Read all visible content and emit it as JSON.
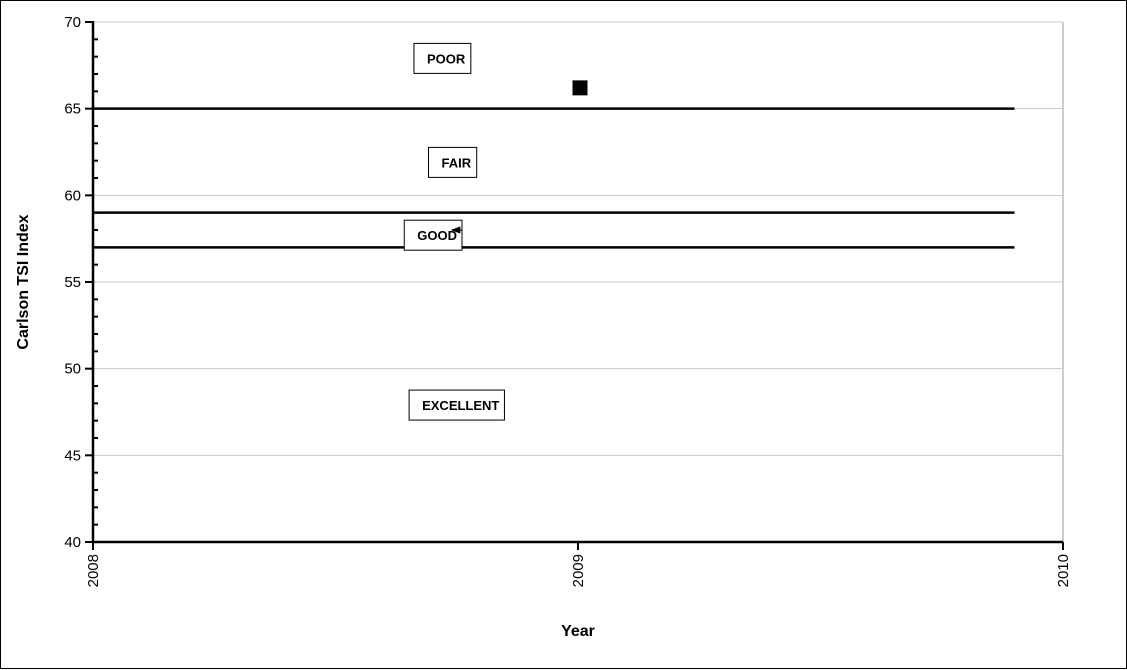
{
  "chart_data": {
    "type": "scatter",
    "title": "",
    "xlabel": "Year",
    "ylabel": "Carlson TSI Index",
    "xlim": [
      2008,
      2010
    ],
    "ylim": [
      40,
      70
    ],
    "x_ticks": [
      2008,
      2009,
      2010
    ],
    "y_ticks": [
      40,
      45,
      50,
      55,
      60,
      65,
      70
    ],
    "grid": "horizontal major gridlines",
    "legend": "none",
    "series": [
      {
        "points": [
          {
            "x": 2009,
            "y": 66.2
          }
        ],
        "color": "#000000",
        "marker": "square"
      }
    ],
    "reference_lines": [
      {
        "y": 65,
        "x_range": [
          2008,
          2009.9
        ]
      },
      {
        "y": 59,
        "x_range": [
          2008,
          2009.9
        ]
      },
      {
        "y": 57,
        "x_range": [
          2008,
          2009.9
        ]
      }
    ],
    "annotations": [
      {
        "text": "POOR",
        "x": 2008.67,
        "y": 67.9
      },
      {
        "text": "FAIR",
        "x": 2008.7,
        "y": 61.9
      },
      {
        "text": "GOOD",
        "x": 2008.65,
        "y": 57.7,
        "arrow_to": {
          "x": 2008.74,
          "y": 58.0
        }
      },
      {
        "text": "EXCELLENT",
        "x": 2008.66,
        "y": 47.9
      }
    ]
  }
}
